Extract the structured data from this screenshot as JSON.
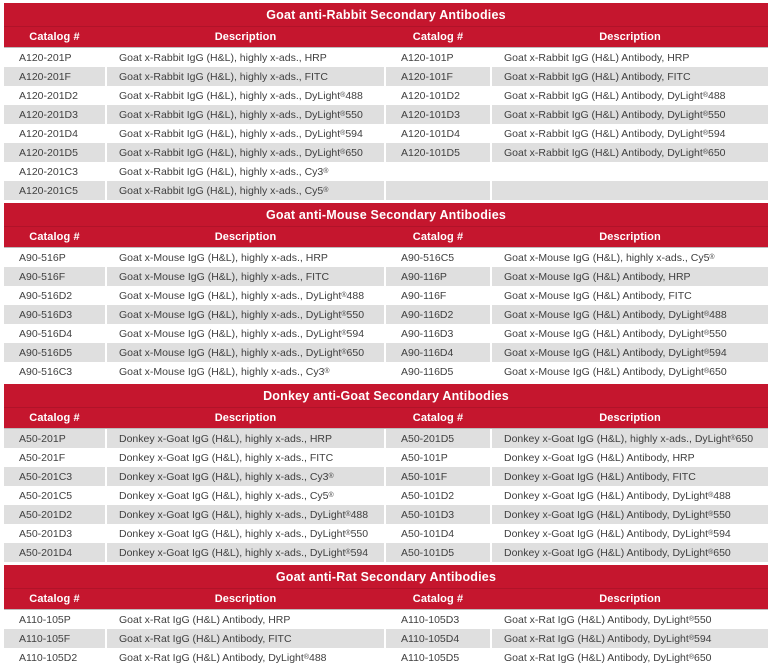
{
  "theme": {
    "header_red": "#C5162E",
    "row_alt_gray": "#DFDFDF",
    "row_text_color": "#404040",
    "header_text_color": "#FFFFFF"
  },
  "sections": [
    {
      "title": "Goat anti-Rabbit Secondary Antibodies",
      "columns": [
        "Catalog #",
        "Description",
        "Catalog #",
        "Description"
      ],
      "shaded_rows": "even",
      "rows": [
        [
          "A120-201P",
          "Goat x-Rabbit IgG (H&L), highly x-ads., HRP",
          "A120-101P",
          "Goat x-Rabbit IgG (H&L) Antibody, HRP"
        ],
        [
          "A120-201F",
          "Goat x-Rabbit IgG (H&L), highly x-ads., FITC",
          "A120-101F",
          "Goat x-Rabbit IgG (H&L) Antibody, FITC"
        ],
        [
          "A120-201D2",
          "Goat x-Rabbit IgG (H&L), highly x-ads., DyLight® 488",
          "A120-101D2",
          "Goat x-Rabbit IgG (H&L) Antibody, DyLight® 488"
        ],
        [
          "A120-201D3",
          "Goat x-Rabbit IgG (H&L), highly x-ads., DyLight® 550",
          "A120-101D3",
          "Goat x-Rabbit IgG (H&L) Antibody, DyLight® 550"
        ],
        [
          "A120-201D4",
          "Goat x-Rabbit IgG (H&L), highly x-ads., DyLight® 594",
          "A120-101D4",
          "Goat x-Rabbit IgG (H&L) Antibody, DyLight® 594"
        ],
        [
          "A120-201D5",
          "Goat x-Rabbit IgG (H&L), highly x-ads., DyLight® 650",
          "A120-101D5",
          "Goat x-Rabbit IgG (H&L) Antibody, DyLight® 650"
        ],
        [
          "A120-201C3",
          "Goat x-Rabbit IgG (H&L), highly x-ads., Cy3®",
          "",
          ""
        ],
        [
          "A120-201C5",
          "Goat x-Rabbit IgG (H&L), highly x-ads., Cy5®",
          "",
          ""
        ]
      ]
    },
    {
      "title": "Goat anti-Mouse Secondary Antibodies",
      "columns": [
        "Catalog #",
        "Description",
        "Catalog #",
        "Description"
      ],
      "shaded_rows": "even",
      "rows": [
        [
          "A90-516P",
          "Goat x-Mouse IgG (H&L), highly x-ads., HRP",
          "A90-516C5",
          "Goat x-Mouse IgG (H&L), highly x-ads., Cy5®"
        ],
        [
          "A90-516F",
          "Goat x-Mouse IgG (H&L), highly x-ads., FITC",
          "A90-116P",
          "Goat x-Mouse IgG (H&L) Antibody, HRP"
        ],
        [
          "A90-516D2",
          "Goat x-Mouse IgG (H&L), highly x-ads., DyLight® 488",
          "A90-116F",
          "Goat x-Mouse IgG (H&L) Antibody, FITC"
        ],
        [
          "A90-516D3",
          "Goat x-Mouse IgG (H&L), highly x-ads., DyLight® 550",
          "A90-116D2",
          "Goat x-Mouse IgG (H&L) Antibody, DyLight® 488"
        ],
        [
          "A90-516D4",
          "Goat x-Mouse IgG (H&L), highly x-ads., DyLight® 594",
          "A90-116D3",
          "Goat x-Mouse IgG (H&L) Antibody, DyLight® 550"
        ],
        [
          "A90-516D5",
          "Goat x-Mouse IgG (H&L), highly x-ads., DyLight® 650",
          "A90-116D4",
          "Goat x-Mouse IgG (H&L) Antibody, DyLight® 594"
        ],
        [
          "A90-516C3",
          "Goat x-Mouse IgG (H&L), highly x-ads., Cy3®",
          "A90-116D5",
          "Goat x-Mouse IgG (H&L) Antibody, DyLight® 650"
        ]
      ]
    },
    {
      "title": "Donkey anti-Goat Secondary Antibodies",
      "columns": [
        "Catalog #",
        "Description",
        "Catalog #",
        "Description"
      ],
      "shaded_rows": "odd",
      "rows": [
        [
          "A50-201P",
          "Donkey x-Goat IgG (H&L), highly x-ads., HRP",
          "A50-201D5",
          "Donkey x-Goat IgG (H&L), highly x-ads., DyLight® 650"
        ],
        [
          "A50-201F",
          "Donkey x-Goat IgG (H&L), highly x-ads., FITC",
          "A50-101P",
          "Donkey x-Goat IgG (H&L) Antibody, HRP"
        ],
        [
          "A50-201C3",
          "Donkey x-Goat IgG (H&L), highly x-ads., Cy3®",
          "A50-101F",
          "Donkey x-Goat IgG (H&L) Antibody, FITC"
        ],
        [
          "A50-201C5",
          "Donkey x-Goat IgG (H&L), highly x-ads., Cy5®",
          "A50-101D2",
          "Donkey x-Goat IgG (H&L) Antibody, DyLight® 488"
        ],
        [
          "A50-201D2",
          "Donkey x-Goat IgG (H&L), highly x-ads., DyLight® 488",
          "A50-101D3",
          "Donkey x-Goat IgG (H&L) Antibody, DyLight® 550"
        ],
        [
          "A50-201D3",
          "Donkey x-Goat IgG (H&L), highly x-ads., DyLight® 550",
          "A50-101D4",
          "Donkey x-Goat IgG (H&L) Antibody, DyLight® 594"
        ],
        [
          "A50-201D4",
          "Donkey x-Goat IgG (H&L), highly x-ads., DyLight® 594",
          "A50-101D5",
          "Donkey x-Goat IgG (H&L) Antibody, DyLight® 650"
        ]
      ]
    },
    {
      "title": "Goat anti-Rat Secondary Antibodies",
      "columns": [
        "Catalog #",
        "Description",
        "Catalog #",
        "Description"
      ],
      "shaded_rows": "even",
      "rows": [
        [
          "A110-105P",
          "Goat x-Rat IgG (H&L) Antibody, HRP",
          "A110-105D3",
          "Goat x-Rat IgG (H&L) Antibody, DyLight® 550"
        ],
        [
          "A110-105F",
          "Goat x-Rat IgG (H&L) Antibody, FITC",
          "A110-105D4",
          "Goat x-Rat IgG (H&L) Antibody, DyLight® 594"
        ],
        [
          "A110-105D2",
          "Goat x-Rat IgG (H&L) Antibody, DyLight® 488",
          "A110-105D5",
          "Goat x-Rat IgG (H&L) Antibody, DyLight® 650"
        ]
      ]
    }
  ]
}
